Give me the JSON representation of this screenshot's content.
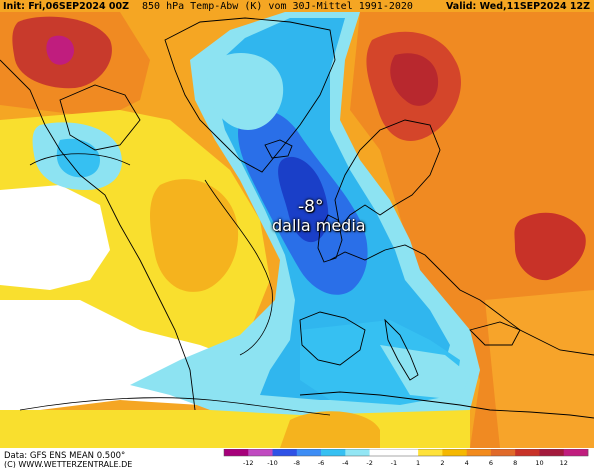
{
  "header": {
    "init": "Init: Fri,06SEP2024 00Z",
    "title": "850 hPa Temp-Abw (K) vom 30J-Mittel 1991-2020",
    "valid": "Valid: Wed,11SEP2024 12Z"
  },
  "annotation": {
    "value": "-8°",
    "text": "dalla media"
  },
  "footer": {
    "data": "Data: GFS ENS MEAN 0.500°",
    "site": "(C) WWW.WETTERZENTRALE.DE"
  },
  "legend": {
    "ticks": [
      "-12",
      "-10",
      "-8",
      "-6",
      "-4",
      "-2",
      "-1",
      "1",
      "2",
      "4",
      "6",
      "8",
      "10",
      "12"
    ],
    "colors": [
      "#a6007a",
      "#c04ac0",
      "#2f52e6",
      "#3d8df5",
      "#36c0f2",
      "#92e6f4",
      "#ffffff",
      "#ffffff",
      "#ffe23a",
      "#f5b800",
      "#f28a1c",
      "#e06a2a",
      "#c83228",
      "#a31a3c",
      "#c01d7e"
    ]
  },
  "colors": {
    "warm_strong": "#b8282e",
    "warm": "#e26a24",
    "warm_light": "#f5a623",
    "yellow": "#f9df2e",
    "cold_light": "#8de3f2",
    "cold": "#30b6ee",
    "cold_strong": "#2a6fe8",
    "cold_core": "#1a3fc8"
  }
}
